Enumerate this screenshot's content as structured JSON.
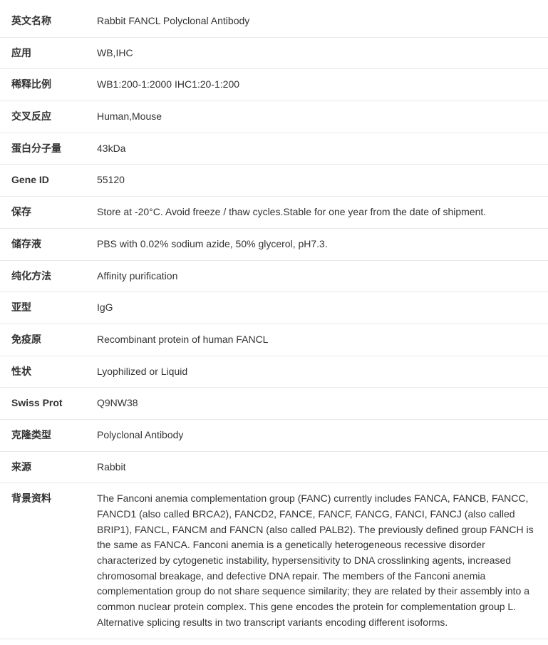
{
  "rows": [
    {
      "label": "英文名称",
      "value": "Rabbit FANCL Polyclonal Antibody"
    },
    {
      "label": "应用",
      "value": "WB,IHC"
    },
    {
      "label": "稀释比例",
      "value": "WB1:200-1:2000 IHC1:20-1:200"
    },
    {
      "label": "交叉反应",
      "value": "Human,Mouse"
    },
    {
      "label": "蛋白分子量",
      "value": "43kDa"
    },
    {
      "label": "Gene ID",
      "value": "55120"
    },
    {
      "label": "保存",
      "value": "Store at -20°C. Avoid freeze / thaw cycles.Stable for one year from the date of shipment."
    },
    {
      "label": "储存液",
      "value": "PBS with 0.02% sodium azide, 50% glycerol, pH7.3."
    },
    {
      "label": "纯化方法",
      "value": "Affinity purification"
    },
    {
      "label": "亚型",
      "value": "IgG"
    },
    {
      "label": "免疫原",
      "value": "Recombinant protein of human FANCL"
    },
    {
      "label": "性状",
      "value": "Lyophilized or Liquid"
    },
    {
      "label": "Swiss Prot",
      "value": "Q9NW38"
    },
    {
      "label": "克隆类型",
      "value": "Polyclonal Antibody"
    },
    {
      "label": "来源",
      "value": "Rabbit"
    },
    {
      "label": "背景资料",
      "value": "The Fanconi anemia complementation group (FANC) currently includes FANCA, FANCB, FANCC, FANCD1 (also called BRCA2), FANCD2, FANCE, FANCF, FANCG, FANCI, FANCJ (also called BRIP1), FANCL, FANCM and FANCN (also called PALB2). The previously defined group FANCH is the same as FANCA. Fanconi anemia is a genetically heterogeneous recessive disorder characterized by cytogenetic instability, hypersensitivity to DNA crosslinking agents, increased chromosomal breakage, and defective DNA repair. The members of the Fanconi anemia complementation group do not share sequence similarity; they are related by their assembly into a common nuclear protein complex. This gene encodes the protein for complementation group L. Alternative splicing results in two transcript variants encoding different isoforms."
    }
  ]
}
